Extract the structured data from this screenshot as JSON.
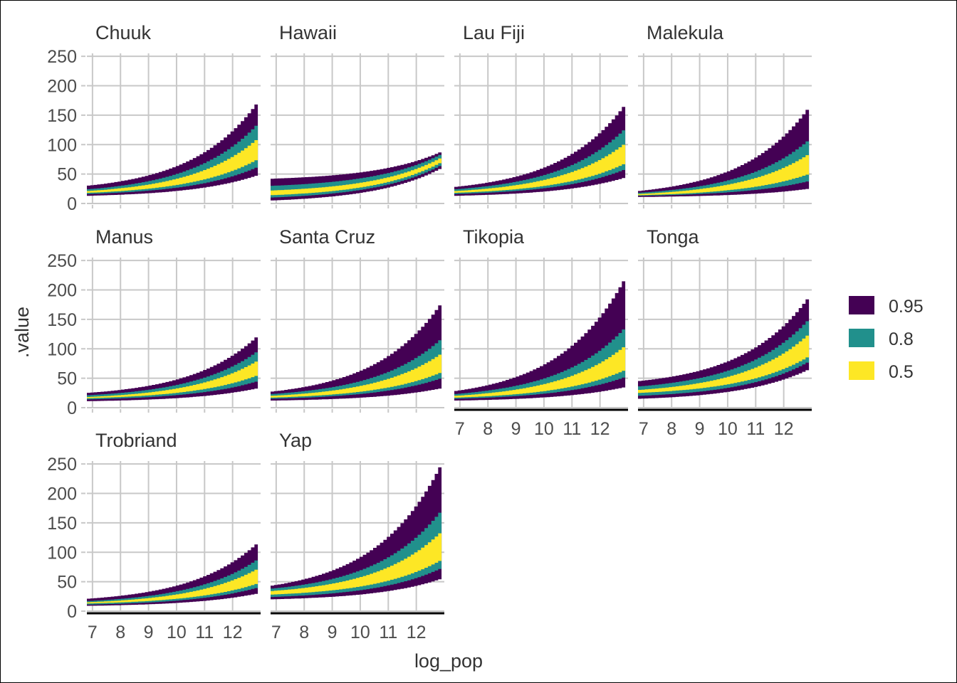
{
  "chart_data": {
    "type": "area",
    "subtype": "faceted-ribbon-intervals",
    "xlabel": "log_pop",
    "ylabel": ".value",
    "xlim": [
      6.8,
      13.0
    ],
    "ylim": [
      0,
      255
    ],
    "x_ticks": [
      "7",
      "8",
      "9",
      "10",
      "11",
      "12"
    ],
    "y_ticks": [
      "0",
      "50",
      "100",
      "150",
      "200",
      "250"
    ],
    "grid": true,
    "legend": {
      "position": "right",
      "entries": [
        {
          "label": "0.95",
          "color": "#440154"
        },
        {
          "label": "0.8",
          "color": "#21908C"
        },
        {
          "label": "0.5",
          "color": "#FDE725"
        }
      ]
    },
    "x_range": [
      6.8,
      12.9
    ],
    "panels": [
      {
        "name": "Chuuk",
        "start": {
          "l95": 13,
          "l80": 16,
          "l50": 18,
          "u50": 21,
          "u80": 24,
          "u95": 30
        },
        "end": {
          "l95": 48,
          "l80": 62,
          "l50": 75,
          "u50": 110,
          "u80": 135,
          "u95": 172
        }
      },
      {
        "name": "Hawaii",
        "start": {
          "l95": 5,
          "l80": 10,
          "l50": 14,
          "u50": 22,
          "u80": 30,
          "u95": 42
        },
        "end": {
          "l95": 60,
          "l80": 65,
          "l50": 70,
          "u50": 78,
          "u80": 84,
          "u95": 88
        }
      },
      {
        "name": "Lau Fiji",
        "start": {
          "l95": 13,
          "l80": 16,
          "l50": 18,
          "u50": 21,
          "u80": 24,
          "u95": 28
        },
        "end": {
          "l95": 44,
          "l80": 58,
          "l50": 68,
          "u50": 102,
          "u80": 127,
          "u95": 168
        }
      },
      {
        "name": "Malekula",
        "start": {
          "l95": 11,
          "l80": 13,
          "l50": 14,
          "u50": 16,
          "u80": 18,
          "u95": 21
        },
        "end": {
          "l95": 25,
          "l80": 38,
          "l50": 50,
          "u50": 84,
          "u80": 108,
          "u95": 163
        }
      },
      {
        "name": "Manus",
        "start": {
          "l95": 11,
          "l80": 14,
          "l50": 16,
          "u50": 18,
          "u80": 21,
          "u95": 25
        },
        "end": {
          "l95": 33,
          "l80": 45,
          "l50": 55,
          "u50": 80,
          "u80": 96,
          "u95": 122
        }
      },
      {
        "name": "Santa Cruz",
        "start": {
          "l95": 12,
          "l80": 15,
          "l50": 17,
          "u50": 20,
          "u80": 23,
          "u95": 27
        },
        "end": {
          "l95": 33,
          "l80": 50,
          "l50": 60,
          "u50": 92,
          "u80": 117,
          "u95": 178
        }
      },
      {
        "name": "Tikopia",
        "start": {
          "l95": 12,
          "l80": 15,
          "l50": 17,
          "u50": 20,
          "u80": 23,
          "u95": 28
        },
        "end": {
          "l95": 35,
          "l80": 52,
          "l50": 64,
          "u50": 105,
          "u80": 136,
          "u95": 220
        }
      },
      {
        "name": "Tonga",
        "start": {
          "l95": 15,
          "l80": 20,
          "l50": 25,
          "u50": 30,
          "u80": 36,
          "u95": 45
        },
        "end": {
          "l95": 65,
          "l80": 78,
          "l50": 87,
          "u50": 125,
          "u80": 150,
          "u95": 188
        }
      },
      {
        "name": "Trobriand",
        "start": {
          "l95": 9,
          "l80": 11,
          "l50": 13,
          "u50": 15,
          "u80": 17,
          "u95": 21
        },
        "end": {
          "l95": 30,
          "l80": 40,
          "l50": 47,
          "u50": 72,
          "u80": 88,
          "u95": 116
        }
      },
      {
        "name": "Yap",
        "start": {
          "l95": 20,
          "l80": 24,
          "l50": 28,
          "u50": 34,
          "u80": 38,
          "u95": 43
        },
        "end": {
          "l95": 55,
          "l80": 73,
          "l50": 87,
          "u50": 135,
          "u80": 171,
          "u95": 250
        }
      }
    ]
  }
}
